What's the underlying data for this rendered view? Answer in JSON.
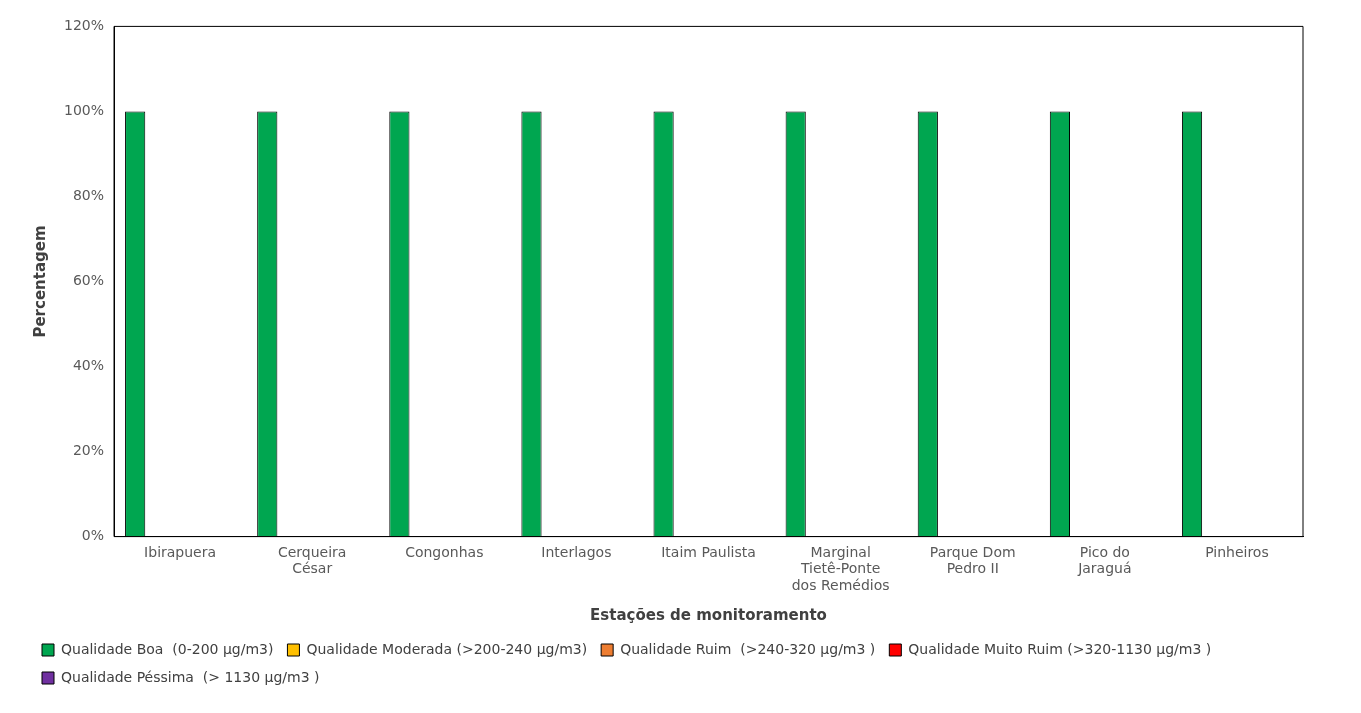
{
  "chart_data": {
    "type": "bar",
    "xlabel": "Estações de monitoramento",
    "ylabel": "Percentagem",
    "categories": [
      "Ibirapuera",
      "Cerqueira César",
      "Congonhas",
      "Interlagos",
      "Itaim Paulista",
      "Marginal Tietê-Ponte dos Remédios",
      "Parque Dom Pedro II",
      "Pico do Jaraguá",
      "Pinheiros"
    ],
    "series": [
      {
        "name": "Qualidade Boa  (0-200 μg/m3)",
        "color": "#00a650",
        "values": [
          100,
          100,
          100,
          100,
          100,
          100,
          100,
          100,
          100
        ]
      },
      {
        "name": "Qualidade Moderada (>200-240 μg/m3)",
        "color": "#ffc000",
        "values": [
          0,
          0,
          0,
          0,
          0,
          0,
          0,
          0,
          0
        ]
      },
      {
        "name": "Qualidade Ruim  (>240-320 μg/m3 )",
        "color": "#ed7d31",
        "values": [
          0,
          0,
          0,
          0,
          0,
          0,
          0,
          0,
          0
        ]
      },
      {
        "name": "Qualidade Muito Ruim (>320-1130 μg/m3 )",
        "color": "#ff0000",
        "values": [
          0,
          0,
          0,
          0,
          0,
          0,
          0,
          0,
          0
        ]
      },
      {
        "name": "Qualidade Péssima  (> 1130 μg/m3 )",
        "color": "#7030a0",
        "values": [
          0,
          0,
          0,
          0,
          0,
          0,
          0,
          0,
          0
        ]
      }
    ],
    "ylim": [
      0,
      120
    ],
    "yticks": [
      {
        "value": 0,
        "label": "0%"
      },
      {
        "value": 20,
        "label": "20%"
      },
      {
        "value": 40,
        "label": "40%"
      },
      {
        "value": 60,
        "label": "60%"
      },
      {
        "value": 80,
        "label": "80%"
      },
      {
        "value": 100,
        "label": "100%"
      },
      {
        "value": 120,
        "label": "120%"
      }
    ],
    "grid": false,
    "legend": "bottom"
  }
}
